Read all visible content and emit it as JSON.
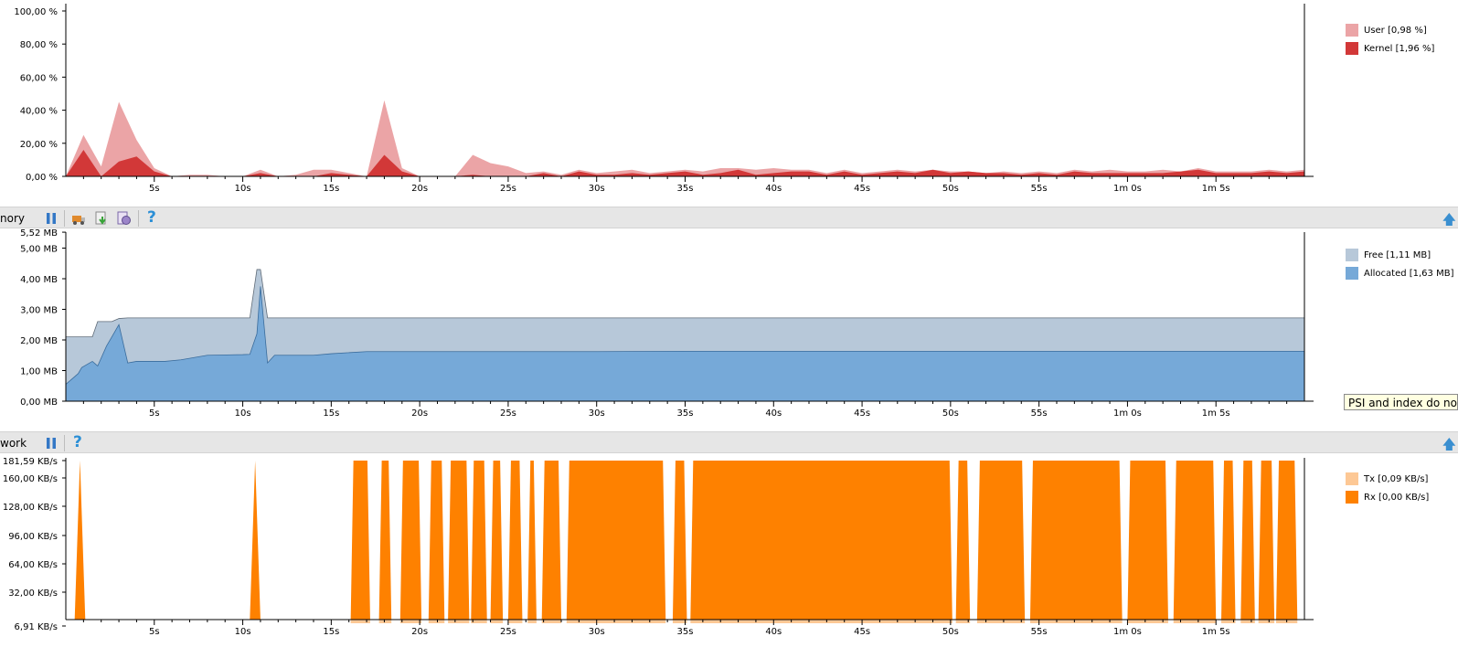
{
  "timeline_ticks": [
    "5s",
    "10s",
    "15s",
    "20s",
    "25s",
    "30s",
    "35s",
    "40s",
    "45s",
    "50s",
    "55s",
    "1m 0s",
    "1m 5s"
  ],
  "cpu": {
    "y_labels": [
      "100,00 %",
      "80,00 %",
      "60,00 %",
      "40,00 %",
      "20,00 %",
      "0,00 %"
    ],
    "legend": [
      {
        "label": "User [0,98 %]",
        "color": "#eba4a6"
      },
      {
        "label": "Kernel [1,96 %]",
        "color": "#d23838"
      }
    ]
  },
  "memory": {
    "title": "nory",
    "y_labels": [
      "5,52 MB",
      "5,00 MB",
      "4,00 MB",
      "3,00 MB",
      "2,00 MB",
      "1,00 MB",
      "0,00 MB"
    ],
    "legend": [
      {
        "label": "Free [1,11 MB]",
        "color": "#b7c8d9"
      },
      {
        "label": "Allocated [1,63 MB]",
        "color": "#76a9d8"
      }
    ],
    "toolbar": [
      "pause-icon",
      "dump-icon",
      "download-icon",
      "gc-icon",
      "help-icon"
    ]
  },
  "tooltip": "PSI and index do not m",
  "network": {
    "title": "work",
    "y_labels": [
      "181,59 KB/s",
      "160,00 KB/s",
      "128,00 KB/s",
      "96,00 KB/s",
      "64,00 KB/s",
      "32,00 KB/s",
      "6,91 KB/s"
    ],
    "legend": [
      {
        "label": "Tx [0,09 KB/s]",
        "color": "#fdc895"
      },
      {
        "label": "Rx [0,00 KB/s]",
        "color": "#fe8100"
      }
    ],
    "toolbar": [
      "pause-icon",
      "help-icon"
    ]
  },
  "chart_data": [
    {
      "type": "area",
      "ylim": [
        0,
        100
      ],
      "x": [
        0,
        1,
        2,
        3,
        4,
        5,
        6,
        7,
        8,
        9,
        10,
        11,
        12,
        13,
        14,
        15,
        16,
        17,
        18,
        19,
        20,
        21,
        22,
        23,
        24,
        25,
        26,
        27,
        28,
        29,
        30,
        31,
        32,
        33,
        34,
        35,
        36,
        37,
        38,
        39,
        40,
        41,
        42,
        43,
        44,
        45,
        46,
        47,
        48,
        49,
        50,
        51,
        52,
        53,
        54,
        55,
        56,
        57,
        58,
        59,
        60,
        61,
        62,
        63,
        64,
        65,
        66,
        67,
        68,
        69,
        70
      ],
      "series": [
        {
          "name": "Kernel [1,96 %]",
          "values": [
            0,
            16,
            0,
            9,
            12,
            3,
            0,
            0,
            0,
            0,
            0,
            2,
            0,
            0,
            0,
            2,
            1,
            0,
            13,
            3,
            0,
            0,
            0,
            1,
            0,
            0,
            0,
            2,
            0,
            3,
            1,
            1,
            2,
            1,
            2,
            3,
            1,
            2,
            4,
            1,
            2,
            3,
            3,
            1,
            3,
            1,
            2,
            3,
            2,
            4,
            2,
            3,
            2,
            2,
            1,
            2,
            1,
            3,
            2,
            2,
            2,
            2,
            2,
            3,
            4,
            2,
            2,
            2,
            3,
            2,
            3
          ]
        },
        {
          "name": "User [0,98 %]",
          "values": [
            0,
            25,
            6,
            45,
            22,
            5,
            0,
            1,
            1,
            0,
            0,
            4,
            0,
            1,
            4,
            4,
            2,
            0,
            46,
            5,
            0,
            0,
            0,
            13,
            8,
            6,
            2,
            3,
            1,
            4,
            2,
            3,
            4,
            2,
            3,
            4,
            3,
            5,
            5,
            4,
            5,
            4,
            4,
            2,
            4,
            2,
            3,
            4,
            3,
            4,
            3,
            3,
            2,
            3,
            2,
            3,
            2,
            4,
            3,
            4,
            3,
            3,
            4,
            3,
            5,
            3,
            3,
            3,
            4,
            3,
            4
          ]
        }
      ]
    },
    {
      "type": "area",
      "ylim": [
        0,
        5.52
      ],
      "x": [
        0,
        0.7,
        0.9,
        1.5,
        1.8,
        2.3,
        2.6,
        3.0,
        3.5,
        4.0,
        5.0,
        5.6,
        6.5,
        8.0,
        10.0,
        10.4,
        10.8,
        11.0,
        11.4,
        11.8,
        12.2,
        14.0,
        15.0,
        17.0,
        20.0,
        25.0,
        30.0,
        35.0,
        40.0,
        45.0,
        50.0,
        55.0,
        60.0,
        65.0,
        70.0
      ],
      "series": [
        {
          "name": "Allocated [1,63 MB]",
          "values": [
            0.55,
            0.9,
            1.1,
            1.3,
            1.15,
            1.8,
            2.1,
            2.5,
            1.25,
            1.3,
            1.3,
            1.3,
            1.35,
            1.5,
            1.52,
            1.53,
            2.2,
            3.75,
            1.25,
            1.5,
            1.5,
            1.5,
            1.55,
            1.62,
            1.62,
            1.62,
            1.62,
            1.63,
            1.63,
            1.63,
            1.63,
            1.63,
            1.63,
            1.63,
            1.63
          ]
        },
        {
          "name": "Free [1,11 MB]",
          "values": [
            2.1,
            2.1,
            2.1,
            2.1,
            2.6,
            2.6,
            2.6,
            2.7,
            2.72,
            2.72,
            2.72,
            2.72,
            2.72,
            2.72,
            2.72,
            2.72,
            4.3,
            4.3,
            2.72,
            2.72,
            2.72,
            2.72,
            2.72,
            2.72,
            2.72,
            2.72,
            2.72,
            2.72,
            2.72,
            2.72,
            2.72,
            2.72,
            2.72,
            2.72,
            2.72
          ]
        }
      ]
    },
    {
      "type": "area",
      "ylim": [
        6.91,
        181.59
      ],
      "series": [
        {
          "name": "Rx [0,00 KB/s]",
          "spikes_s": [
            0.8,
            10.7
          ],
          "blocks_s": [
            [
              16.1,
              17.2
            ],
            [
              17.7,
              18.4
            ],
            [
              18.9,
              20.1
            ],
            [
              20.5,
              21.4
            ],
            [
              21.6,
              22.8
            ],
            [
              22.9,
              23.8
            ],
            [
              24.0,
              24.7
            ],
            [
              25.0,
              25.8
            ],
            [
              26.1,
              26.6
            ],
            [
              26.9,
              28.0
            ],
            [
              28.3,
              33.9
            ],
            [
              34.3,
              35.1
            ],
            [
              35.3,
              50.1
            ],
            [
              50.3,
              51.1
            ],
            [
              51.5,
              54.2
            ],
            [
              54.5,
              59.7
            ],
            [
              60.0,
              62.3
            ],
            [
              62.6,
              65.0
            ],
            [
              65.3,
              66.1
            ],
            [
              66.4,
              67.2
            ],
            [
              67.4,
              68.3
            ],
            [
              68.4,
              69.6
            ]
          ]
        },
        {
          "name": "Tx [0,09 KB/s]",
          "values": [
            0.09
          ]
        }
      ]
    }
  ]
}
